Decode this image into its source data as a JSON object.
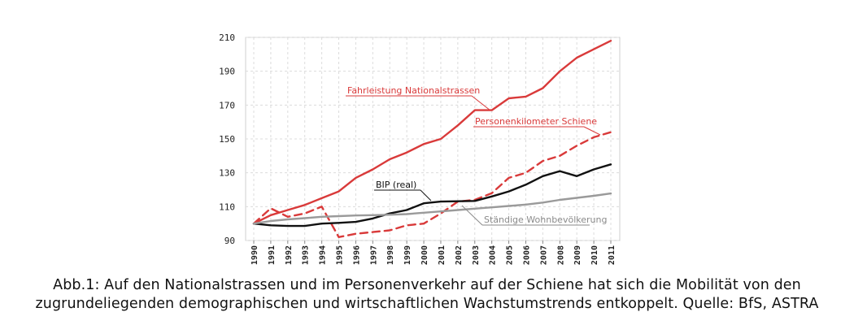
{
  "caption": {
    "line1": "Abb.1: Auf den Nationalstrassen und im Personenverkehr auf der Schiene hat sich die Mobilität von den",
    "line2": "zugrundeliegenden demographischen und wirtschaftlichen Wachstumstrends entkoppelt. Quelle: BfS, ASTRA"
  },
  "chart_data": {
    "type": "line",
    "x": [
      "1990",
      "1991",
      "1992",
      "1993",
      "1994",
      "1995",
      "1996",
      "1997",
      "1998",
      "1999",
      "2000",
      "2001",
      "2002",
      "2003",
      "2004",
      "2005",
      "2006",
      "2007",
      "2008",
      "2009",
      "2010",
      "2011"
    ],
    "ylim": [
      90,
      210
    ],
    "yticks": [
      90,
      110,
      130,
      150,
      170,
      190,
      210
    ],
    "grid": true,
    "series": [
      {
        "name": "Fahrleistung Nationalstrassen",
        "color": "#d93a3a",
        "style": "solid",
        "values": [
          100,
          105,
          108,
          111,
          115,
          119,
          127,
          132,
          138,
          142,
          147,
          150,
          158,
          167,
          167,
          174,
          175,
          180,
          190,
          198,
          203,
          208
        ]
      },
      {
        "name": "Personenkilometer Schiene",
        "color": "#d93a3a",
        "style": "dashed",
        "values": [
          100,
          109,
          104,
          106,
          110,
          92,
          94,
          95,
          96,
          99,
          100,
          106,
          113,
          114,
          118,
          127,
          130,
          137,
          140,
          146,
          151,
          154
        ]
      },
      {
        "name": "BIP (real)",
        "color": "#111111",
        "style": "solid",
        "values": [
          100,
          99,
          98.6,
          98.6,
          100,
          100.4,
          101,
          103,
          106,
          108,
          112,
          113,
          113.2,
          113.4,
          116,
          119,
          123,
          128,
          131,
          128,
          132,
          135
        ]
      },
      {
        "name": "Ständige Wohnbevölkerung",
        "color": "#9a9a9a",
        "style": "solid",
        "values": [
          100,
          101.5,
          102.5,
          103.2,
          104,
          104.4,
          104.8,
          105,
          105.2,
          105.6,
          106.4,
          107.2,
          108,
          108.8,
          109.6,
          110.4,
          111.2,
          112.4,
          114,
          115.2,
          116.4,
          117.8
        ]
      }
    ]
  }
}
